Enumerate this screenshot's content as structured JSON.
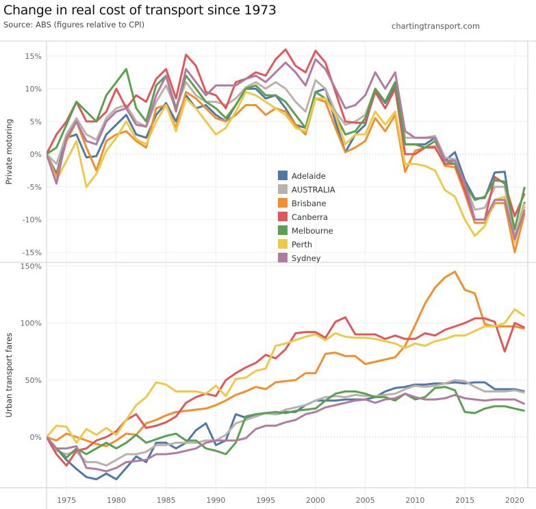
{
  "header": {
    "title": "Change in real cost of transport since 1973",
    "subtitle": "Source: ABS (figures relative to CPI)",
    "credit": "chartingtransport.com"
  },
  "chart_data": [
    {
      "type": "line",
      "title": "Private motoring",
      "ylabel": "Private motoring",
      "xlabel": "",
      "ylim": [
        -16,
        16.5
      ],
      "yticks": [
        -15,
        -10,
        -5,
        0,
        5,
        10,
        15
      ],
      "ytick_labels": [
        "-15%",
        "-10%",
        "-5%",
        "0%",
        "5%",
        "10%",
        "15%"
      ],
      "grid": true,
      "legend": "center-right",
      "x": [
        1973,
        1974,
        1975,
        1976,
        1977,
        1978,
        1979,
        1980,
        1981,
        1982,
        1983,
        1984,
        1985,
        1986,
        1987,
        1988,
        1989,
        1990,
        1991,
        1992,
        1993,
        1994,
        1995,
        1996,
        1997,
        1998,
        1999,
        2000,
        2001,
        2002,
        2003,
        2004,
        2005,
        2006,
        2007,
        2008,
        2009,
        2010,
        2011,
        2012,
        2013,
        2014,
        2015,
        2016,
        2017,
        2018,
        2019,
        2020,
        2021
      ],
      "series": [
        {
          "name": "Adelaide",
          "color": "#4e79a7",
          "values": [
            0,
            -3,
            2.5,
            3,
            -0.5,
            -0.3,
            3,
            4.5,
            6,
            3,
            2.5,
            6,
            7.8,
            5,
            9,
            7,
            7.5,
            6,
            5,
            7.5,
            10,
            10,
            8.5,
            9,
            7,
            4.5,
            4,
            9.5,
            10,
            5,
            0.3,
            3,
            4.5,
            9.8,
            7.8,
            10.3,
            1.5,
            1.5,
            1.5,
            2.5,
            -1,
            0.3,
            -4,
            -6.8,
            -6.7,
            -2.8,
            -2.7,
            -13,
            -7.3
          ]
        },
        {
          "name": "AUSTRALIA",
          "color": "#bab0ac",
          "values": [
            0,
            -1.5,
            3,
            5.5,
            3,
            2.2,
            5.5,
            7,
            7.5,
            5,
            4.2,
            8,
            10.5,
            7,
            11,
            9,
            8,
            8,
            7.5,
            8.5,
            10.2,
            11,
            10,
            11,
            10,
            8,
            6.5,
            11.3,
            10,
            6.5,
            4.5,
            5,
            6,
            10,
            8,
            11,
            2.5,
            2.5,
            2.5,
            2.8,
            -0.5,
            -0.8,
            -4.5,
            -8.5,
            -8.2,
            -5,
            -5,
            -12.5,
            -8
          ]
        },
        {
          "name": "Brisbane",
          "color": "#f28e2b",
          "values": [
            0,
            -3.5,
            2,
            5,
            1,
            -2.5,
            2,
            3,
            3.5,
            2,
            1,
            7,
            7.5,
            4,
            9.5,
            8.5,
            7,
            5.5,
            5,
            6,
            7.5,
            7.5,
            6,
            7,
            6.5,
            4.5,
            3,
            8.5,
            8,
            4,
            0.3,
            1,
            2,
            5.5,
            3.5,
            6,
            -2.7,
            0.5,
            1,
            1.2,
            -1.8,
            -2,
            -6,
            -10.5,
            -10.5,
            -7.5,
            -7.5,
            -15,
            -9
          ]
        },
        {
          "name": "Canberra",
          "color": "#e15759",
          "values": [
            0,
            3,
            5,
            8,
            5,
            5,
            6.5,
            10,
            7,
            9,
            8,
            11.5,
            13,
            8.5,
            15.2,
            13.5,
            9.5,
            9,
            7,
            11,
            11.5,
            12.5,
            12,
            14.5,
            16,
            13.5,
            12.5,
            15.8,
            14,
            9.5,
            5,
            4.8,
            4.8,
            9.5,
            7,
            10,
            0,
            0,
            1,
            1,
            -1.5,
            -1.5,
            -5.5,
            -10,
            -10,
            -3.5,
            -4.5,
            -9.5,
            -6
          ]
        },
        {
          "name": "Melbourne",
          "color": "#59a14f",
          "values": [
            0,
            1,
            4.5,
            8,
            6.5,
            5,
            9,
            11,
            13,
            7,
            5,
            10.5,
            12,
            7,
            12,
            10,
            8,
            7,
            5.5,
            7.5,
            10,
            10.5,
            9,
            9,
            8,
            6,
            4,
            9.5,
            8.5,
            6,
            3,
            3.5,
            5.5,
            10,
            8,
            11,
            1.5,
            1.5,
            1,
            2,
            -1,
            -1.5,
            -4.5,
            -7,
            -6.5,
            -4,
            -4.2,
            -11.5,
            -5
          ]
        },
        {
          "name": "Perth",
          "color": "#edc948",
          "values": [
            0,
            -4,
            -1,
            2,
            -5,
            -3,
            0.5,
            2.5,
            5,
            2.3,
            1.5,
            5,
            7.5,
            3.5,
            8.5,
            7,
            5,
            3,
            4,
            6.5,
            9.5,
            9,
            8,
            7,
            6,
            4,
            3.5,
            8.5,
            8.5,
            6,
            1.5,
            3,
            3,
            6.5,
            4.5,
            6.5,
            -1.5,
            -1.5,
            -1.8,
            -2.5,
            -5.5,
            -6.5,
            -10,
            -12.5,
            -11,
            -7,
            -6.5,
            -13.5,
            -7.5
          ]
        },
        {
          "name": "Sydney",
          "color": "#b07aa1",
          "values": [
            0,
            -4.5,
            2.5,
            5,
            2,
            1.5,
            5,
            6.5,
            7,
            4.5,
            4.2,
            9,
            12,
            6.5,
            13,
            11,
            9,
            10.5,
            10.5,
            10.5,
            11.5,
            12,
            11,
            12.5,
            14,
            12.5,
            10.5,
            14.5,
            13,
            10,
            7,
            7.5,
            9,
            12.5,
            10,
            12.5,
            3.5,
            2.5,
            2.5,
            2.5,
            -1,
            -1,
            -4.5,
            -10,
            -10,
            -7,
            -7,
            -13,
            -8.5
          ]
        }
      ]
    },
    {
      "type": "line",
      "title": "Urban transport fares",
      "ylabel": "Urban transport fares",
      "xlabel": "",
      "ylim": [
        -45,
        155
      ],
      "yticks": [
        0,
        50,
        100,
        150
      ],
      "ytick_labels": [
        "0%",
        "50%",
        "100%",
        "150%"
      ],
      "xticks": [
        1975,
        1980,
        1985,
        1990,
        1995,
        2000,
        2005,
        2010,
        2015,
        2020
      ],
      "xtick_labels": [
        "1975",
        "1980",
        "1985",
        "1990",
        "1995",
        "2000",
        "2005",
        "2010",
        "2015",
        "2020"
      ],
      "grid": true,
      "x": [
        1973,
        1974,
        1975,
        1976,
        1977,
        1978,
        1979,
        1980,
        1981,
        1982,
        1983,
        1984,
        1985,
        1986,
        1987,
        1988,
        1989,
        1990,
        1991,
        1992,
        1993,
        1994,
        1995,
        1996,
        1997,
        1998,
        1999,
        2000,
        2001,
        2002,
        2003,
        2004,
        2005,
        2006,
        2007,
        2008,
        2009,
        2010,
        2011,
        2012,
        2013,
        2014,
        2015,
        2016,
        2017,
        2018,
        2019,
        2020,
        2021
      ],
      "series": [
        {
          "name": "Adelaide",
          "color": "#4e79a7",
          "values": [
            0,
            -10,
            -20,
            -28,
            -35,
            -37,
            -32,
            -37,
            -27,
            -17,
            -22,
            -5,
            -5,
            -10,
            -5,
            6,
            12,
            -7,
            -3,
            20,
            17,
            20,
            21,
            20,
            22,
            22,
            28,
            32,
            32,
            32,
            33,
            33,
            33,
            35,
            40,
            43,
            44,
            46,
            46,
            47,
            47,
            48,
            47,
            48,
            48,
            42,
            42,
            42,
            40
          ]
        },
        {
          "name": "AUSTRALIA",
          "color": "#bab0ac",
          "values": [
            0,
            -12,
            -15,
            -13,
            -22,
            -22,
            -25,
            -20,
            -15,
            -15,
            -13,
            -7,
            -7,
            -5,
            -5,
            -5,
            -3,
            -3,
            2,
            12,
            15,
            18,
            21,
            20,
            24,
            26,
            28,
            32,
            35,
            36,
            35,
            37,
            36,
            36,
            37,
            38,
            42,
            45,
            44,
            45,
            47,
            50,
            49,
            44,
            40,
            40,
            40,
            41,
            39
          ]
        },
        {
          "name": "Brisbane",
          "color": "#f28e2b",
          "values": [
            0,
            -3,
            3,
            0,
            -3,
            -6,
            -8,
            -3,
            3,
            2,
            12,
            15,
            19,
            22,
            23,
            24,
            25,
            28,
            32,
            37,
            40,
            44,
            42,
            48,
            49,
            50,
            56,
            56,
            73,
            74,
            71,
            71,
            64,
            66,
            68,
            70,
            80,
            98,
            117,
            131,
            140,
            145,
            129,
            126,
            99,
            97,
            97,
            97,
            95
          ]
        },
        {
          "name": "Canberra",
          "color": "#e15759",
          "values": [
            0,
            -15,
            -25,
            -12,
            -10,
            -3,
            0,
            5,
            15,
            20,
            8,
            10,
            13,
            18,
            30,
            35,
            38,
            36,
            50,
            56,
            61,
            65,
            72,
            69,
            77,
            91,
            92,
            92,
            87,
            101,
            105,
            90,
            90,
            90,
            86,
            89,
            86,
            86,
            91,
            89,
            94,
            97,
            100,
            104,
            104,
            101,
            75,
            100,
            96
          ]
        },
        {
          "name": "Melbourne",
          "color": "#59a14f",
          "values": [
            0,
            -10,
            -18,
            -10,
            -15,
            -10,
            -5,
            -10,
            -5,
            2,
            -5,
            -2,
            1,
            3,
            -3,
            -3,
            -10,
            -12,
            -15,
            -5,
            18,
            20,
            21,
            22,
            21,
            23,
            24,
            25,
            32,
            38,
            40,
            40,
            38,
            35,
            35,
            32,
            38,
            33,
            35,
            43,
            44,
            41,
            22,
            21,
            25,
            27,
            27,
            25,
            23
          ]
        },
        {
          "name": "Perth",
          "color": "#edc948",
          "values": [
            0,
            10,
            9,
            -5,
            7,
            2,
            8,
            2,
            15,
            28,
            35,
            48,
            46,
            40,
            40,
            40,
            38,
            45,
            36,
            51,
            52,
            58,
            60,
            80,
            82,
            85,
            88,
            90,
            85,
            91,
            88,
            87,
            87,
            86,
            84,
            82,
            78,
            82,
            80,
            84,
            86,
            89,
            89,
            93,
            97,
            97,
            100,
            112,
            106
          ]
        },
        {
          "name": "Sydney",
          "color": "#b07aa1",
          "values": [
            0,
            -10,
            -10,
            -8,
            -27,
            -28,
            -30,
            -27,
            -22,
            -21,
            -20,
            -15,
            -15,
            -14,
            -12,
            -10,
            -5,
            -3,
            -3,
            -3,
            -1,
            7,
            10,
            10,
            13,
            15,
            20,
            22,
            26,
            28,
            30,
            32,
            33,
            30,
            33,
            34,
            38,
            35,
            33,
            33,
            34,
            37,
            34,
            33,
            32,
            33,
            33,
            33,
            29
          ]
        }
      ]
    }
  ]
}
